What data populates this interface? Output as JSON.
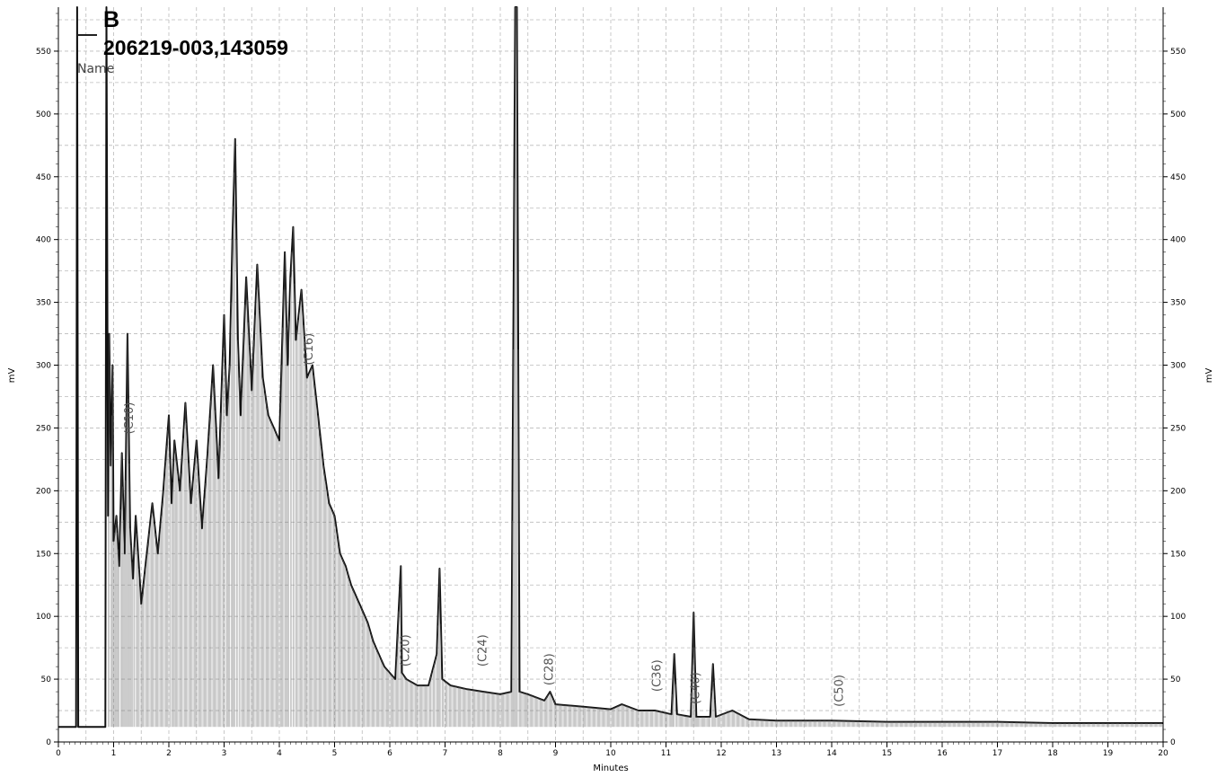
{
  "chart_data": {
    "type": "line",
    "title": "",
    "xlabel": "Minutes",
    "ylabel_left": "mV",
    "ylabel_right": "mV",
    "xlim": [
      0,
      20
    ],
    "ylim": [
      0,
      585
    ],
    "x_ticks": [
      0,
      1,
      2,
      3,
      4,
      5,
      6,
      7,
      8,
      9,
      10,
      11,
      12,
      13,
      14,
      15,
      16,
      17,
      18,
      19,
      20
    ],
    "y_ticks": [
      0,
      50,
      100,
      150,
      200,
      250,
      300,
      350,
      400,
      450,
      500,
      550
    ],
    "grid": true,
    "legend": {
      "title": "B",
      "series_name": "206219-003,143059",
      "column_header": "Name"
    },
    "series": [
      {
        "name": "206219-003,143059",
        "x": [
          0,
          0.3,
          0.32,
          0.34,
          0.36,
          0.85,
          0.87,
          0.9,
          0.92,
          0.95,
          0.98,
          1.0,
          1.05,
          1.1,
          1.15,
          1.2,
          1.25,
          1.3,
          1.35,
          1.4,
          1.5,
          1.6,
          1.7,
          1.8,
          1.9,
          2.0,
          2.05,
          2.1,
          2.2,
          2.3,
          2.4,
          2.5,
          2.6,
          2.7,
          2.8,
          2.9,
          3.0,
          3.05,
          3.1,
          3.15,
          3.2,
          3.25,
          3.3,
          3.4,
          3.5,
          3.6,
          3.7,
          3.8,
          3.9,
          4.0,
          4.1,
          4.15,
          4.2,
          4.25,
          4.3,
          4.4,
          4.5,
          4.6,
          4.7,
          4.8,
          4.9,
          5.0,
          5.1,
          5.2,
          5.3,
          5.4,
          5.5,
          5.6,
          5.7,
          5.8,
          5.9,
          6.0,
          6.1,
          6.2,
          6.22,
          6.3,
          6.5,
          6.7,
          6.85,
          6.9,
          6.95,
          7.1,
          7.4,
          7.7,
          8.0,
          8.2,
          8.27,
          8.3,
          8.35,
          8.5,
          8.8,
          8.9,
          9.0,
          9.5,
          10.0,
          10.2,
          10.5,
          10.8,
          11.1,
          11.15,
          11.2,
          11.45,
          11.5,
          11.55,
          11.8,
          11.85,
          11.9,
          12.2,
          12.5,
          13,
          14,
          15,
          16,
          17,
          18,
          19,
          20
        ],
        "values": [
          12,
          12,
          12,
          585,
          12,
          12,
          585,
          180,
          325,
          220,
          300,
          160,
          180,
          140,
          230,
          150,
          325,
          170,
          130,
          180,
          110,
          150,
          190,
          150,
          200,
          260,
          190,
          240,
          200,
          270,
          190,
          240,
          170,
          230,
          300,
          210,
          340,
          260,
          300,
          400,
          480,
          320,
          260,
          370,
          280,
          380,
          290,
          260,
          250,
          240,
          390,
          300,
          370,
          410,
          320,
          360,
          290,
          300,
          260,
          220,
          190,
          180,
          150,
          140,
          125,
          115,
          105,
          95,
          80,
          70,
          60,
          55,
          50,
          140,
          55,
          50,
          45,
          45,
          70,
          138,
          50,
          45,
          42,
          40,
          38,
          40,
          585,
          585,
          40,
          38,
          33,
          40,
          30,
          28,
          26,
          30,
          25,
          25,
          22,
          70,
          22,
          20,
          103,
          20,
          20,
          62,
          20,
          25,
          18,
          17,
          17,
          16,
          16,
          16,
          15,
          15,
          15
        ]
      }
    ],
    "annotations": [
      {
        "label": "(C10)",
        "x": 1.35,
        "y": 245
      },
      {
        "label": "(C16)",
        "x": 4.6,
        "y": 300
      },
      {
        "label": "(C20)",
        "x": 6.35,
        "y": 60
      },
      {
        "label": "(C24)",
        "x": 7.75,
        "y": 60
      },
      {
        "label": "(C28)",
        "x": 8.95,
        "y": 45
      },
      {
        "label": "(C36)",
        "x": 10.9,
        "y": 40
      },
      {
        "label": "(C40)",
        "x": 11.6,
        "y": 30
      },
      {
        "label": "(C50)",
        "x": 14.2,
        "y": 28
      }
    ]
  }
}
